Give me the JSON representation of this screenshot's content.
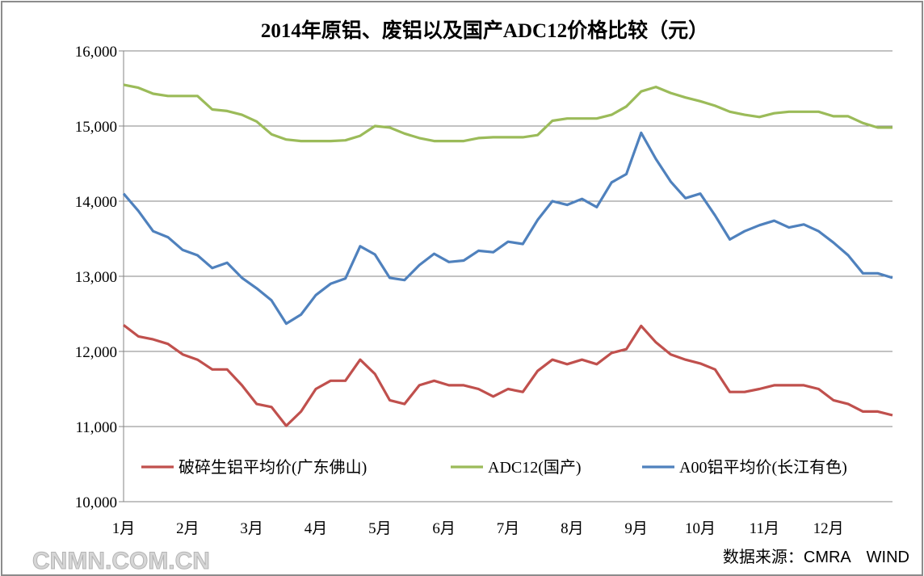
{
  "chart_data": {
    "type": "line",
    "title": "2014年原铝、废铝以及国产ADC12价格比较（元）",
    "xlabel": "",
    "ylabel": "",
    "x_tick_labels": [
      "1月",
      "2月",
      "3月",
      "4月",
      "5月",
      "6月",
      "7月",
      "8月",
      "9月",
      "10月",
      "11月",
      "12月"
    ],
    "y_tick_labels": [
      "10,000",
      "11,000",
      "12,000",
      "13,000",
      "14,000",
      "15,000",
      "16,000"
    ],
    "y_ticks": [
      10000,
      11000,
      12000,
      13000,
      14000,
      15000,
      16000
    ],
    "ylim": [
      10000,
      16000
    ],
    "grid": "horizontal",
    "legend_position": "bottom-inside",
    "series": [
      {
        "name": "破碎生铝平均价(广东佛山)",
        "color": "#c0504d",
        "values": [
          12350,
          12200,
          12160,
          12100,
          11960,
          11890,
          11760,
          11760,
          11550,
          11300,
          11260,
          11010,
          11200,
          11500,
          11610,
          11610,
          11890,
          11700,
          11350,
          11300,
          11550,
          11610,
          11550,
          11550,
          11500,
          11400,
          11500,
          11460,
          11740,
          11890,
          11830,
          11890,
          11830,
          11980,
          12030,
          12340,
          12120,
          11960,
          11890,
          11840,
          11760,
          11460,
          11460,
          11500,
          11550,
          11550,
          11550,
          11500,
          11350,
          11300,
          11200,
          11200,
          11150
        ]
      },
      {
        "name": "ADC12(国产)",
        "color": "#9bbb59",
        "values": [
          15550,
          15510,
          15430,
          15400,
          15400,
          15400,
          15220,
          15200,
          15150,
          15060,
          14890,
          14820,
          14800,
          14800,
          14800,
          14810,
          14870,
          15000,
          14980,
          14900,
          14840,
          14800,
          14800,
          14800,
          14840,
          14850,
          14850,
          14850,
          14880,
          15070,
          15100,
          15100,
          15100,
          15150,
          15260,
          15460,
          15520,
          15440,
          15380,
          15330,
          15270,
          15190,
          15150,
          15120,
          15170,
          15190,
          15190,
          15190,
          15130,
          15130,
          15040,
          14980,
          14980
        ]
      },
      {
        "name": "A00铝平均价(长江有色)",
        "color": "#4f81bd",
        "values": [
          14100,
          13870,
          13600,
          13520,
          13350,
          13280,
          13110,
          13180,
          12980,
          12840,
          12680,
          12370,
          12490,
          12750,
          12900,
          12970,
          13400,
          13290,
          12980,
          12950,
          13150,
          13300,
          13190,
          13210,
          13340,
          13320,
          13460,
          13430,
          13750,
          14000,
          13950,
          14030,
          13920,
          14250,
          14360,
          14910,
          14560,
          14260,
          14040,
          14100,
          13810,
          13490,
          13600,
          13680,
          13740,
          13650,
          13690,
          13600,
          13450,
          13280,
          13040,
          13040,
          12980
        ]
      }
    ]
  },
  "source": "数据来源：CMRA　WIND",
  "watermark": "CNMN.COM.CN"
}
